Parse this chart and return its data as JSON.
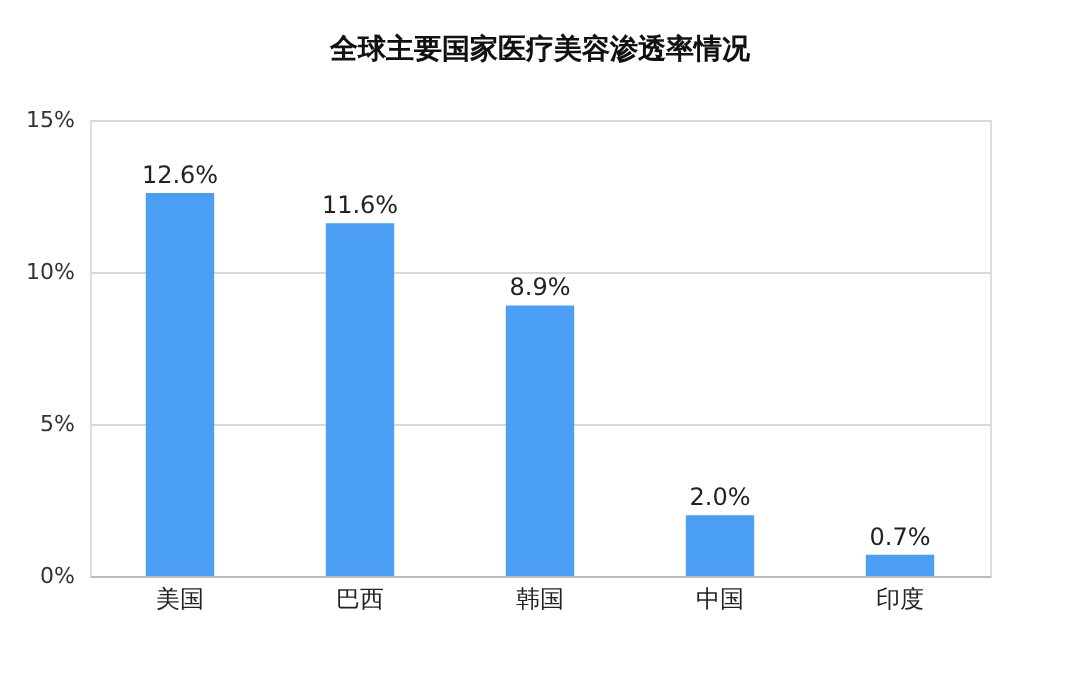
{
  "chart_data": {
    "type": "bar",
    "title": "全球主要国家医疗美容渗透率情况",
    "categories": [
      "美国",
      "巴西",
      "韩国",
      "中国",
      "印度"
    ],
    "values": [
      12.6,
      11.6,
      8.9,
      2.0,
      0.7
    ],
    "value_labels": [
      "12.6%",
      "11.6%",
      "8.9%",
      "2.0%",
      "0.7%"
    ],
    "color": "#4a9ff5",
    "ylim": [
      0,
      15
    ],
    "yticks": [
      {
        "value": 0,
        "label": "0%"
      },
      {
        "value": 5,
        "label": "5%"
      },
      {
        "value": 10,
        "label": "10%"
      },
      {
        "value": 15,
        "label": "15%"
      }
    ],
    "grid": "y"
  }
}
